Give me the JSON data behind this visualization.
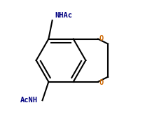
{
  "bg_color": "#ffffff",
  "bond_color": "#000000",
  "O_color": "#cc6600",
  "N_color": "#000080",
  "label_NHAc": "NHAc",
  "label_AcNH": "AcNH",
  "O_label": "O",
  "line_width": 1.5,
  "figsize": [
    2.27,
    1.67
  ],
  "dpi": 100
}
